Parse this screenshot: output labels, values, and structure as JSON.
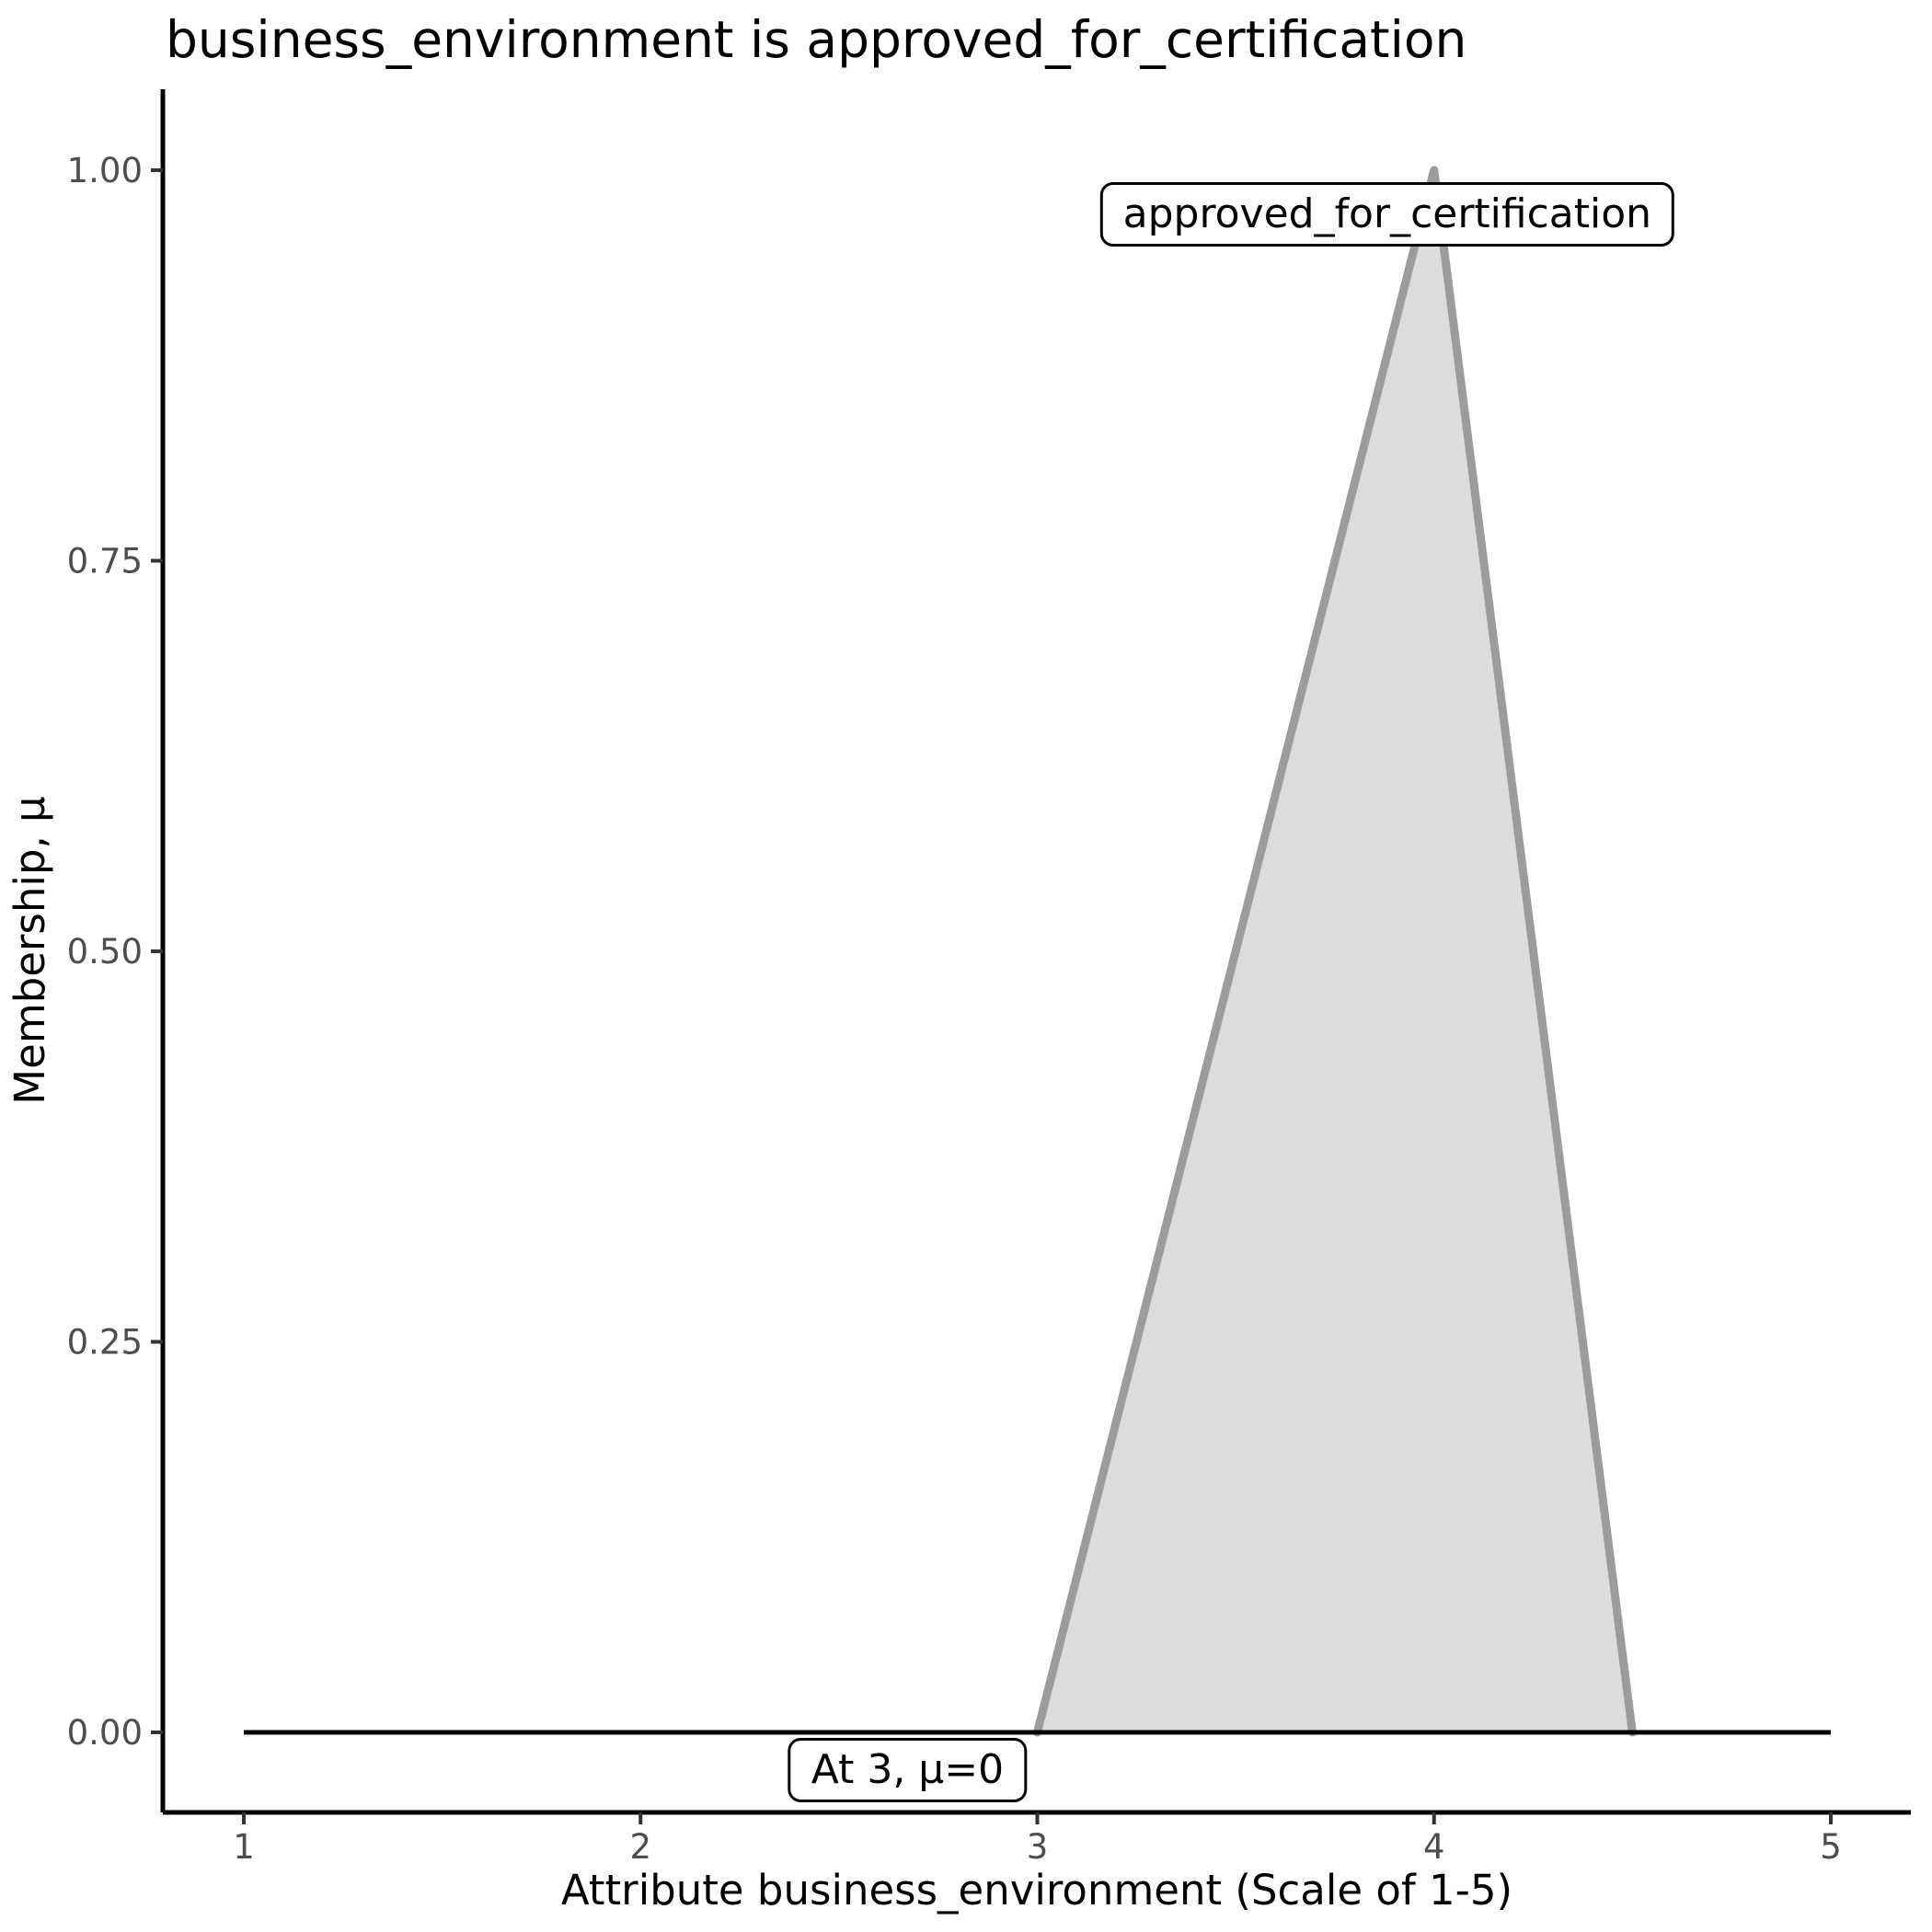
{
  "title": "business_environment is approved_for_certification",
  "chart_data": {
    "type": "area",
    "title": "business_environment is approved_for_certification",
    "xlabel": "Attribute business_environment (Scale of 1-5)",
    "ylabel": "Membership, μ",
    "xlim": [
      1,
      5
    ],
    "ylim": [
      0,
      1
    ],
    "grid": "off",
    "legend": "none",
    "x_ticks": {
      "values": [
        1,
        2,
        3,
        4,
        5
      ],
      "labels": [
        "1",
        "2",
        "3",
        "4",
        "5"
      ]
    },
    "y_ticks": {
      "values": [
        0,
        0.25,
        0.5,
        0.75,
        1
      ],
      "labels": [
        "0.00",
        "0.25",
        "0.50",
        "0.75",
        "1.00"
      ]
    },
    "series": [
      {
        "name": "approved_for_certification",
        "shape": "triangular membership function",
        "points_xy": [
          [
            3,
            0
          ],
          [
            4,
            1
          ],
          [
            4.5,
            0
          ]
        ],
        "peak": {
          "x": 4,
          "mu": 1
        }
      }
    ],
    "baseline": {
      "y": 0,
      "x_start": 1,
      "x_end": 5
    },
    "annotations": [
      {
        "text": "approved_for_certification",
        "x": 3.882,
        "y": 0.972
      },
      {
        "text": "At 3, μ=0",
        "x": 2.673,
        "y": -0.024
      }
    ],
    "colors": {
      "area_fill": "#dcdcdc",
      "area_stroke": "#9c9c9c",
      "baseline": "#000000",
      "axis_line": "#000000",
      "tick_mark": "#333333",
      "tick_text": "#4d4d4d",
      "text": "#000000",
      "background": "#ffffff"
    }
  }
}
